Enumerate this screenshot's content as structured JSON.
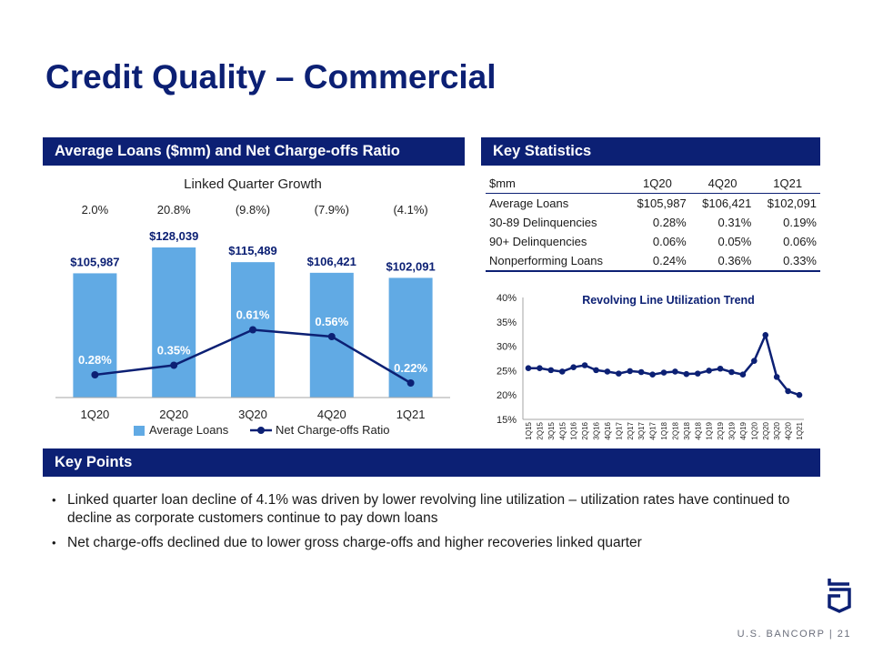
{
  "slide": {
    "title": "Credit Quality – Commercial",
    "left_section_title": "Average Loans ($mm) and Net Charge-offs Ratio",
    "right_section_title": "Key Statistics",
    "points_section_title": "Key Points",
    "points": [
      "Linked quarter loan decline of 4.1% was driven by lower revolving line utilization – utilization rates have continued to decline as corporate customers continue to pay down loans",
      "Net charge-offs declined due to lower gross charge-offs and higher recoveries linked quarter"
    ],
    "footer": {
      "brand": "U.S. BANCORP",
      "separator": "|",
      "page": "21"
    }
  },
  "colors": {
    "navy": "#0c2074",
    "bar": "#61aae4",
    "axis": "#a6a6a6"
  },
  "icons": {
    "logo": "us-bancorp-shield-logo"
  },
  "key_statistics": {
    "headers": [
      "$mm",
      "1Q20",
      "4Q20",
      "1Q21"
    ],
    "rows": [
      [
        "Average Loans",
        "$105,987",
        "$106,421",
        "$102,091"
      ],
      [
        "30-89 Delinquencies",
        "0.28%",
        "0.31%",
        "0.19%"
      ],
      [
        "90+ Delinquencies",
        "0.06%",
        "0.05%",
        "0.06%"
      ],
      [
        "Nonperforming Loans",
        "0.24%",
        "0.36%",
        "0.33%"
      ]
    ]
  },
  "chart_data": [
    {
      "type": "bar",
      "title": "",
      "subtitle": "Linked Quarter Growth",
      "categories": [
        "1Q20",
        "2Q20",
        "3Q20",
        "4Q20",
        "1Q21"
      ],
      "growth_labels": [
        "2.0%",
        "20.8%",
        "(9.8%)",
        "(7.9%)",
        "(4.1%)"
      ],
      "series": [
        {
          "name": "Average Loans",
          "type": "bar",
          "values": [
            105987,
            128039,
            115489,
            106421,
            102091
          ],
          "labels": [
            "$105,987",
            "$128,039",
            "$115,489",
            "$106,421",
            "$102,091"
          ]
        },
        {
          "name": "Net Charge-offs Ratio",
          "type": "line",
          "values": [
            0.28,
            0.35,
            0.61,
            0.56,
            0.22
          ],
          "labels": [
            "0.28%",
            "0.35%",
            "0.61%",
            "0.56%",
            "0.22%"
          ]
        }
      ],
      "legend": "bottom",
      "xlabel": "",
      "ylabel": ""
    },
    {
      "type": "line",
      "title": "Revolving Line Utilization Trend",
      "x": [
        "1Q15",
        "2Q15",
        "3Q15",
        "4Q15",
        "1Q16",
        "2Q16",
        "3Q16",
        "4Q16",
        "1Q17",
        "2Q17",
        "3Q17",
        "4Q17",
        "1Q18",
        "2Q18",
        "3Q18",
        "4Q18",
        "1Q19",
        "2Q19",
        "3Q19",
        "4Q19",
        "1Q20",
        "2Q20",
        "3Q20",
        "4Q20",
        "1Q21"
      ],
      "y": [
        25.5,
        25.5,
        25.1,
        24.8,
        25.7,
        26.1,
        25.1,
        24.8,
        24.4,
        24.9,
        24.7,
        24.2,
        24.6,
        24.8,
        24.3,
        24.4,
        25.0,
        25.4,
        24.7,
        24.2,
        27.0,
        32.3,
        23.7,
        20.8,
        20.0
      ],
      "ylim": [
        15,
        40
      ],
      "yticks": [
        "15%",
        "20%",
        "25%",
        "30%",
        "35%",
        "40%"
      ],
      "grid": false,
      "xlabel": "",
      "ylabel": ""
    }
  ]
}
